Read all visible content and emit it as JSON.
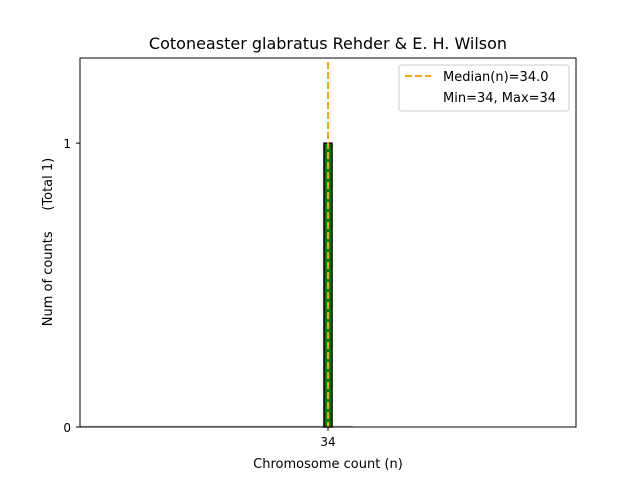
{
  "chart_data": {
    "type": "bar",
    "title": "Cotoneaster glabratus Rehder & E. H. Wilson",
    "xlabel": "Chromosome count (n)",
    "ylabel": "Num of counts     (Total 1)",
    "categories": [
      "34"
    ],
    "values": [
      1
    ],
    "bar_width": 1,
    "xlim": [
      3,
      65
    ],
    "ylim": [
      0,
      1.3
    ],
    "xticks": [
      "34"
    ],
    "yticks": [
      "0",
      "1"
    ],
    "median": 34.0,
    "legend": [
      "Median(n)=34.0",
      "Min=34, Max=34"
    ],
    "legend_position": "top-right",
    "grid": false,
    "colors": {
      "bar": "#008000",
      "bar_edge": "#000000",
      "median": "#FFA500"
    }
  }
}
